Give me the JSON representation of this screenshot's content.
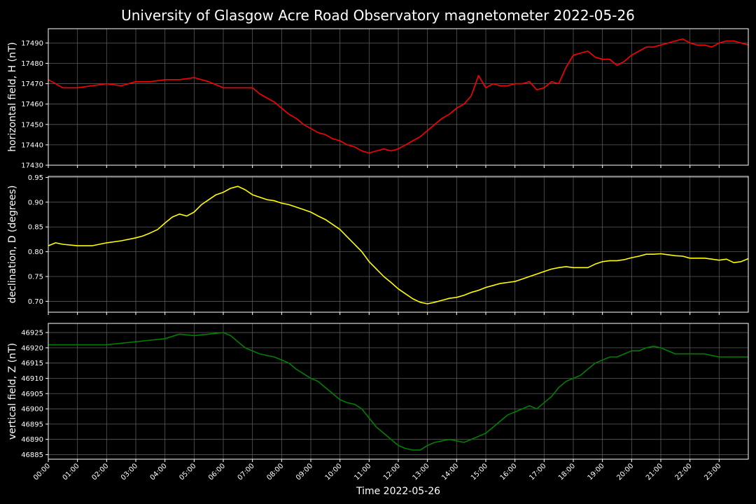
{
  "chart_data": {
    "title": "University of Glasgow Acre Road Observatory magnetometer 2022-05-26",
    "xlabel": "Time 2022-05-26",
    "x_ticks": [
      "00:00",
      "01:00",
      "02:00",
      "03:00",
      "04:00",
      "05:00",
      "06:00",
      "07:00",
      "08:00",
      "09:00",
      "10:00",
      "11:00",
      "12:00",
      "13:00",
      "14:00",
      "15:00",
      "16:00",
      "17:00",
      "18:00",
      "19:00",
      "20:00",
      "21:00",
      "22:00",
      "23:00"
    ],
    "xlim": [
      0,
      24
    ],
    "panels": [
      {
        "type": "line",
        "ylabel": "horizontal field, H (nT)",
        "color": "#ff0000",
        "ylim": [
          17430,
          17497
        ],
        "y_ticks": [
          "17430",
          "17440",
          "17450",
          "17460",
          "17470",
          "17480",
          "17490"
        ],
        "grid": true,
        "series": [
          {
            "x": [
              0,
              0.25,
              0.5,
              1,
              1.5,
              2,
              2.5,
              3,
              3.5,
              4,
              4.5,
              5,
              5.5,
              6,
              6.5,
              7,
              7.25,
              7.5,
              7.75,
              8,
              8.25,
              8.5,
              8.75,
              9,
              9.25,
              9.5,
              9.75,
              10,
              10.25,
              10.5,
              10.75,
              11,
              11.25,
              11.5,
              11.75,
              12,
              12.25,
              12.5,
              12.75,
              13,
              13.25,
              13.5,
              13.75,
              14,
              14.25,
              14.5,
              14.75,
              15,
              15.25,
              15.5,
              15.75,
              16,
              16.25,
              16.5,
              16.75,
              17,
              17.25,
              17.5,
              17.75,
              18,
              18.25,
              18.5,
              18.75,
              19,
              19.25,
              19.5,
              19.75,
              20,
              20.25,
              20.5,
              20.75,
              21,
              21.25,
              21.5,
              21.75,
              22,
              22.25,
              22.5,
              22.75,
              23,
              23.25,
              23.5,
              23.75,
              24
            ],
            "y": [
              17472,
              17470,
              17468,
              17468,
              17469,
              17470,
              17469,
              17471,
              17471,
              17472,
              17472,
              17473,
              17471,
              17468,
              17468,
              17468,
              17465,
              17463,
              17461,
              17458,
              17455,
              17453,
              17450,
              17448,
              17446,
              17445,
              17443,
              17442,
              17440,
              17439,
              17437,
              17436,
              17437,
              17438,
              17437,
              17438,
              17440,
              17442,
              17444,
              17447,
              17450,
              17453,
              17455,
              17458,
              17460,
              17464,
              17474,
              17468,
              17470,
              17469,
              17469,
              17470,
              17470,
              17471,
              17467,
              17468,
              17471,
              17470,
              17478,
              17484,
              17485,
              17486,
              17483,
              17482,
              17482,
              17479,
              17481,
              17484,
              17486,
              17488,
              17488,
              17489,
              17490,
              17491,
              17492,
              17490,
              17489,
              17489,
              17488,
              17490,
              17491,
              17491,
              17490,
              17489
            ]
          }
        ]
      },
      {
        "type": "line",
        "ylabel": "declination, D (degrees)",
        "color": "#ffff00",
        "ylim": [
          0.678,
          0.952
        ],
        "y_ticks": [
          "0.70",
          "0.75",
          "0.80",
          "0.85",
          "0.90",
          "0.95"
        ],
        "grid": true,
        "series": [
          {
            "x": [
              0,
              0.25,
              0.5,
              1,
              1.5,
              2,
              2.5,
              3,
              3.25,
              3.5,
              3.75,
              4,
              4.25,
              4.5,
              4.75,
              5,
              5.25,
              5.5,
              5.75,
              6,
              6.25,
              6.5,
              6.75,
              7,
              7.25,
              7.5,
              7.75,
              8,
              8.25,
              8.5,
              8.75,
              9,
              9.25,
              9.5,
              9.75,
              10,
              10.25,
              10.5,
              10.75,
              11,
              11.25,
              11.5,
              11.75,
              12,
              12.25,
              12.5,
              12.75,
              13,
              13.25,
              13.5,
              13.75,
              14,
              14.25,
              14.5,
              14.75,
              15,
              15.25,
              15.5,
              15.75,
              16,
              16.25,
              16.5,
              16.75,
              17,
              17.25,
              17.5,
              17.75,
              18,
              18.25,
              18.5,
              18.75,
              19,
              19.25,
              19.5,
              19.75,
              20,
              20.25,
              20.5,
              20.75,
              21,
              21.25,
              21.5,
              21.75,
              22,
              22.25,
              22.5,
              22.75,
              23,
              23.25,
              23.5,
              23.75,
              24
            ],
            "y": [
              0.812,
              0.818,
              0.815,
              0.812,
              0.812,
              0.818,
              0.822,
              0.828,
              0.832,
              0.838,
              0.845,
              0.858,
              0.87,
              0.876,
              0.872,
              0.88,
              0.895,
              0.905,
              0.915,
              0.92,
              0.928,
              0.932,
              0.925,
              0.915,
              0.91,
              0.905,
              0.903,
              0.898,
              0.895,
              0.89,
              0.885,
              0.88,
              0.872,
              0.865,
              0.855,
              0.845,
              0.83,
              0.815,
              0.8,
              0.78,
              0.765,
              0.75,
              0.738,
              0.725,
              0.715,
              0.705,
              0.698,
              0.695,
              0.698,
              0.702,
              0.706,
              0.708,
              0.712,
              0.718,
              0.722,
              0.728,
              0.732,
              0.736,
              0.738,
              0.74,
              0.745,
              0.75,
              0.755,
              0.76,
              0.765,
              0.768,
              0.77,
              0.768,
              0.768,
              0.768,
              0.775,
              0.78,
              0.782,
              0.782,
              0.784,
              0.788,
              0.791,
              0.795,
              0.795,
              0.796,
              0.794,
              0.792,
              0.791,
              0.787,
              0.787,
              0.787,
              0.785,
              0.783,
              0.785,
              0.778,
              0.78,
              0.786
            ]
          }
        ]
      },
      {
        "type": "line",
        "ylabel": "vertical field, Z (nT)",
        "color": "#008000",
        "ylim": [
          46883.5,
          46928
        ],
        "y_ticks": [
          "46885",
          "46890",
          "46895",
          "46900",
          "46905",
          "46910",
          "46915",
          "46920",
          "46925"
        ],
        "grid": true,
        "series": [
          {
            "x": [
              0,
              0.5,
              1,
              1.5,
              2,
              2.5,
              3,
              3.5,
              4,
              4.5,
              5,
              5.5,
              6,
              6.25,
              6.5,
              6.75,
              7,
              7.25,
              7.5,
              7.75,
              8,
              8.25,
              8.5,
              8.75,
              9,
              9.25,
              9.5,
              9.75,
              10,
              10.25,
              10.5,
              10.75,
              11,
              11.25,
              11.5,
              11.75,
              12,
              12.25,
              12.5,
              12.75,
              13,
              13.25,
              13.5,
              13.75,
              14,
              14.25,
              14.5,
              14.75,
              15,
              15.25,
              15.5,
              15.75,
              16,
              16.25,
              16.5,
              16.75,
              17,
              17.25,
              17.5,
              17.75,
              18,
              18.25,
              18.5,
              18.75,
              19,
              19.25,
              19.5,
              19.75,
              20,
              20.25,
              20.5,
              20.75,
              21,
              21.25,
              21.5,
              21.75,
              22,
              22.25,
              22.5,
              22.75,
              23,
              23.25,
              23.5,
              23.75,
              24
            ],
            "y": [
              46921,
              46921,
              46921,
              46921,
              46921,
              46921.5,
              46922,
              46922.5,
              46923,
              46924.5,
              46924,
              46924.5,
              46925,
              46924,
              46922,
              46920,
              46919,
              46918,
              46917.5,
              46917,
              46916,
              46915,
              46913,
              46911.5,
              46910,
              46909,
              46907,
              46905,
              46903,
              46902,
              46901.5,
              46900,
              46897,
              46894,
              46892,
              46890,
              46888,
              46887,
              46886.5,
              46886.5,
              46888,
              46889,
              46889.5,
              46890,
              46889.5,
              46889,
              46890,
              46891,
              46892,
              46894,
              46896,
              46898,
              46899,
              46900,
              46901,
              46900,
              46902,
              46904,
              46907,
              46909,
              46910,
              46911,
              46913,
              46915,
              46916,
              46917,
              46917,
              46918,
              46919,
              46919,
              46920,
              46920.5,
              46920,
              46919,
              46918,
              46918,
              46918,
              46918,
              46918,
              46917.5,
              46917,
              46917,
              46917,
              46917,
              46917
            ]
          }
        ]
      }
    ]
  }
}
